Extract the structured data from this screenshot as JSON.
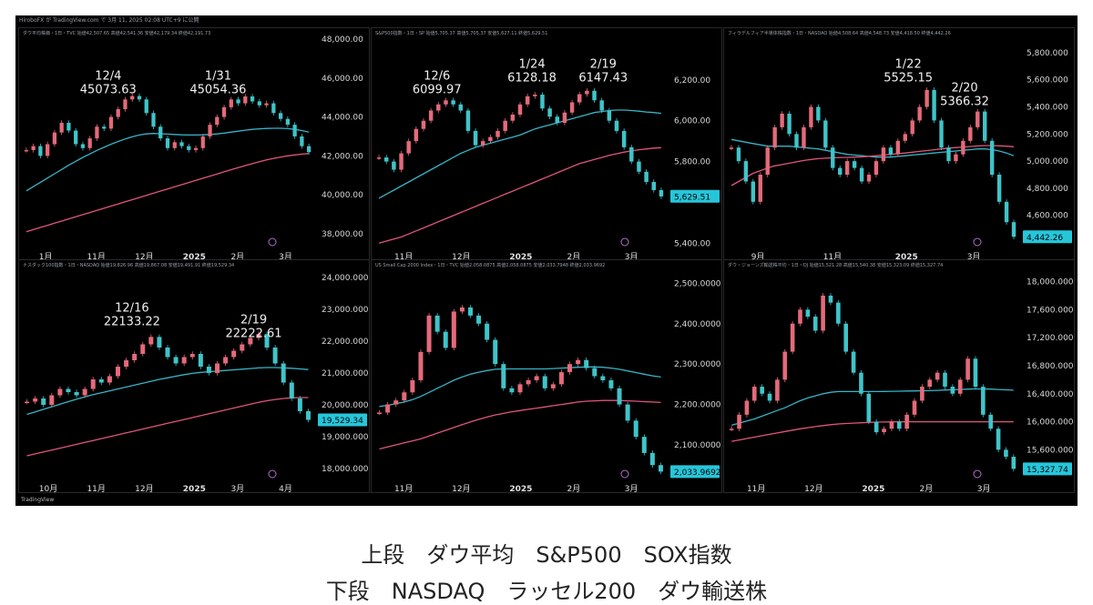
{
  "header": {
    "text": "HiroboFX が TradingView.com で 3月 11, 2025 02:08 UTC+9 に公開"
  },
  "watermark": "TradingView",
  "caption": {
    "line1": "上段　ダウ平均　S&P500　SOX指数",
    "line2": "下段　NASDAQ　ラッセル200　ダウ輸送株"
  },
  "colors": {
    "up": "#e46a7a",
    "down": "#3fc4c9",
    "ma_fast": "#36b5c7",
    "ma_slow": "#e0567c",
    "price_tag": "#26c6da"
  },
  "chart_data": [
    {
      "type": "line",
      "title": "ダウ平均株価・1日・TVC  始値42,507.65 高値42,541.36 安値42,179.34 終値42,191.73",
      "x_ticks": [
        "1月",
        "11月",
        "12月",
        "2025",
        "2月",
        "3月"
      ],
      "y_ticks": [
        "48,000.00",
        "46,000.00",
        "44,000.00",
        "42,000.00",
        "40,000.00",
        "38,000.00"
      ],
      "ylim": [
        37200,
        48000
      ],
      "last_price": "42,191.73",
      "annotations": [
        {
          "date": "12/4",
          "value": "45073.63"
        },
        {
          "date": "1/31",
          "value": "45054.36"
        }
      ],
      "series": [
        {
          "kind": "price",
          "values": [
            42300,
            42500,
            42000,
            42600,
            43200,
            43700,
            43300,
            42600,
            42400,
            42900,
            43500,
            43400,
            44000,
            44400,
            44900,
            45074,
            44900,
            44200,
            43500,
            42900,
            42400,
            42700,
            42500,
            42300,
            42400,
            43000,
            43600,
            44000,
            44500,
            44900,
            44700,
            45054,
            44800,
            44600,
            44700,
            44200,
            43900,
            43600,
            43000,
            42500,
            42191
          ]
        },
        {
          "kind": "ma_fast",
          "values": [
            40200,
            40420,
            40640,
            40860,
            41080,
            41300,
            41520,
            41720,
            41920,
            42100,
            42280,
            42440,
            42600,
            42740,
            42870,
            42980,
            43070,
            43130,
            43150,
            43140,
            43120,
            43100,
            43080,
            43070,
            43070,
            43080,
            43100,
            43130,
            43170,
            43220,
            43270,
            43320,
            43360,
            43390,
            43410,
            43420,
            43420,
            43400,
            43360,
            43300,
            43220
          ]
        },
        {
          "kind": "ma_slow",
          "values": [
            38100,
            38210,
            38320,
            38430,
            38540,
            38650,
            38760,
            38870,
            38980,
            39090,
            39200,
            39310,
            39420,
            39530,
            39640,
            39750,
            39860,
            39970,
            40080,
            40190,
            40300,
            40410,
            40520,
            40630,
            40740,
            40850,
            40960,
            41070,
            41180,
            41290,
            41400,
            41500,
            41600,
            41700,
            41790,
            41870,
            41940,
            42000,
            42050,
            42090,
            42120
          ]
        }
      ]
    },
    {
      "type": "line",
      "title": "S&P500指数・1日・SP  始値5,705.37 高値5,705.37 安値5,627.11 終値5,629.51",
      "x_ticks": [
        "11月",
        "12月",
        "2025",
        "2月",
        "3月"
      ],
      "y_ticks": [
        "6,200.00",
        "6,000.00",
        "5,800.00",
        "5,629.51",
        "5,400.00"
      ],
      "ylim": [
        5370,
        6400
      ],
      "last_price": "5,629.51",
      "annotations": [
        {
          "date": "12/6",
          "value": "6099.97"
        },
        {
          "date": "1/24",
          "value": "6128.18"
        },
        {
          "date": "2/19",
          "value": "6147.43"
        }
      ],
      "series": [
        {
          "kind": "price",
          "values": [
            5820,
            5800,
            5760,
            5840,
            5900,
            5960,
            6000,
            6050,
            6080,
            6100,
            6080,
            6050,
            5950,
            5880,
            5900,
            5920,
            5950,
            6000,
            6030,
            6080,
            6120,
            6128,
            6060,
            6020,
            5990,
            6040,
            6090,
            6130,
            6147,
            6100,
            6050,
            6000,
            5950,
            5870,
            5800,
            5750,
            5700,
            5660,
            5629
          ]
        },
        {
          "kind": "ma_fast",
          "values": [
            5620,
            5640,
            5660,
            5680,
            5700,
            5720,
            5740,
            5760,
            5780,
            5800,
            5820,
            5840,
            5855,
            5870,
            5880,
            5890,
            5900,
            5910,
            5920,
            5930,
            5945,
            5960,
            5970,
            5980,
            5990,
            6000,
            6010,
            6020,
            6030,
            6040,
            6045,
            6050,
            6052,
            6052,
            6050,
            6047,
            6043,
            6040,
            6036
          ]
        },
        {
          "kind": "ma_slow",
          "values": [
            5400,
            5410,
            5420,
            5430,
            5445,
            5460,
            5475,
            5490,
            5505,
            5520,
            5535,
            5550,
            5565,
            5580,
            5595,
            5610,
            5625,
            5640,
            5655,
            5670,
            5685,
            5700,
            5715,
            5730,
            5745,
            5760,
            5775,
            5790,
            5800,
            5810,
            5820,
            5830,
            5838,
            5846,
            5852,
            5858,
            5862,
            5866,
            5868
          ]
        }
      ]
    },
    {
      "type": "line",
      "title": "フィラデルフィア半導体株指数・1日・NASDAQ  始値4,508.64 高値4,548.73 安値4,418.50 終値4,442.26",
      "x_ticks": [
        "9月",
        "11月",
        "2025",
        "3月"
      ],
      "y_ticks": [
        "5,800.000",
        "5,600.000",
        "5,400.000",
        "5,200.000",
        "5,000.000",
        "4,800.000",
        "4,600.000",
        "4,442.26"
      ],
      "ylim": [
        4350,
        5900
      ],
      "last_price": "4,442.26",
      "annotations": [
        {
          "date": "1/22",
          "value": "5525.15"
        },
        {
          "date": "2/20",
          "value": "5366.32"
        }
      ],
      "series": [
        {
          "kind": "price",
          "values": [
            5100,
            5000,
            4850,
            4700,
            4900,
            5100,
            5250,
            5350,
            5200,
            5100,
            5250,
            5400,
            5300,
            5100,
            4950,
            4900,
            5000,
            4950,
            4850,
            4900,
            5000,
            5100,
            5050,
            5150,
            5200,
            5300,
            5400,
            5525,
            5300,
            5100,
            5000,
            5050,
            5150,
            5250,
            5366,
            5150,
            4900,
            4700,
            4550,
            4442
          ]
        },
        {
          "kind": "ma_fast",
          "values": [
            5160,
            5150,
            5140,
            5130,
            5120,
            5110,
            5110,
            5110,
            5110,
            5105,
            5100,
            5095,
            5090,
            5080,
            5070,
            5060,
            5050,
            5045,
            5040,
            5035,
            5030,
            5030,
            5030,
            5035,
            5040,
            5045,
            5050,
            5055,
            5060,
            5065,
            5070,
            5075,
            5080,
            5085,
            5090,
            5090,
            5085,
            5075,
            5060,
            5040
          ]
        },
        {
          "kind": "ma_slow",
          "values": [
            4820,
            4850,
            4880,
            4910,
            4930,
            4950,
            4965,
            4975,
            4985,
            4995,
            5005,
            5012,
            5018,
            5022,
            5025,
            5027,
            5028,
            5030,
            5032,
            5035,
            5040,
            5045,
            5050,
            5055,
            5060,
            5066,
            5072,
            5078,
            5084,
            5090,
            5096,
            5100,
            5104,
            5108,
            5112,
            5115,
            5115,
            5113,
            5110,
            5106
          ]
        }
      ]
    },
    {
      "type": "line",
      "title": "ナスダック100指数・1日・NASDAQ  始値19,826.96 高値19,867.08 安値19,491.91 終値19,529.34",
      "x_ticks": [
        "10月",
        "11月",
        "12月",
        "2025",
        "3月",
        "4月"
      ],
      "y_ticks": [
        "24,000.000",
        "23,000.000",
        "22,000.000",
        "21,000.000",
        "20,000.000",
        "19,529.34",
        "19,000.000",
        "18,000.000"
      ],
      "ylim": [
        17600,
        24200
      ],
      "last_price": "19,529.34",
      "annotations": [
        {
          "date": "12/16",
          "value": "22133.22"
        },
        {
          "date": "2/19",
          "value": "22222.61"
        }
      ],
      "series": [
        {
          "kind": "price",
          "values": [
            20100,
            20200,
            20000,
            20300,
            20500,
            20400,
            20300,
            20500,
            20800,
            20700,
            20900,
            21200,
            21400,
            21600,
            21900,
            22133,
            21800,
            21500,
            21300,
            21500,
            21600,
            21200,
            21000,
            21300,
            21500,
            21700,
            21900,
            22100,
            22222,
            21800,
            21300,
            20700,
            20200,
            19800,
            19529
          ]
        },
        {
          "kind": "ma_fast",
          "values": [
            19700,
            19780,
            19860,
            19940,
            20020,
            20100,
            20180,
            20250,
            20320,
            20380,
            20440,
            20500,
            20560,
            20620,
            20680,
            20740,
            20800,
            20850,
            20900,
            20950,
            20990,
            21020,
            21040,
            21060,
            21080,
            21100,
            21120,
            21140,
            21160,
            21170,
            21170,
            21160,
            21150,
            21130,
            21110
          ]
        },
        {
          "kind": "ma_slow",
          "values": [
            18400,
            18460,
            18520,
            18580,
            18640,
            18700,
            18760,
            18820,
            18880,
            18940,
            19000,
            19060,
            19120,
            19180,
            19240,
            19300,
            19360,
            19420,
            19480,
            19540,
            19600,
            19660,
            19720,
            19780,
            19840,
            19900,
            19960,
            20020,
            20080,
            20130,
            20170,
            20200,
            20220,
            20230,
            20230
          ]
        }
      ]
    },
    {
      "type": "line",
      "title": "US Small Cap 2000 Index・1日・TVC  始値2,058.0875 高値2,058.0875 安値2,033.7948 終値2,033.9692",
      "x_ticks": [
        "11月",
        "12月",
        "2025",
        "2月",
        "3月"
      ],
      "y_ticks": [
        "2,500.0000",
        "2,400.0000",
        "2,300.0000",
        "2,200.0000",
        "2,100.0000",
        "2,033.9692"
      ],
      "ylim": [
        2010,
        2530
      ],
      "last_price": "2,033.9692",
      "annotations": [],
      "series": [
        {
          "kind": "price",
          "values": [
            2180,
            2200,
            2210,
            2230,
            2260,
            2330,
            2420,
            2380,
            2340,
            2430,
            2440,
            2420,
            2400,
            2360,
            2300,
            2240,
            2230,
            2250,
            2260,
            2270,
            2240,
            2250,
            2280,
            2300,
            2310,
            2290,
            2270,
            2260,
            2240,
            2200,
            2160,
            2120,
            2080,
            2050,
            2034
          ]
        },
        {
          "kind": "ma_fast",
          "values": [
            2195,
            2198,
            2202,
            2206,
            2212,
            2220,
            2230,
            2240,
            2250,
            2260,
            2268,
            2275,
            2280,
            2284,
            2287,
            2288,
            2288,
            2288,
            2288,
            2288,
            2288,
            2289,
            2290,
            2291,
            2292,
            2293,
            2293,
            2292,
            2290,
            2287,
            2283,
            2279,
            2275,
            2271,
            2268
          ]
        },
        {
          "kind": "ma_slow",
          "values": [
            2090,
            2095,
            2100,
            2105,
            2110,
            2115,
            2122,
            2129,
            2136,
            2143,
            2150,
            2157,
            2163,
            2169,
            2174,
            2178,
            2182,
            2185,
            2188,
            2191,
            2194,
            2197,
            2200,
            2203,
            2206,
            2208,
            2209,
            2210,
            2210,
            2210,
            2209,
            2208,
            2207,
            2206,
            2205
          ]
        }
      ]
    },
    {
      "type": "line",
      "title": "ダウ・ジョーンズ輸送株平均・1日・DJ  始値15,521.28 高値15,540.38 安値15,323.09 終値15,327.74",
      "x_ticks": [
        "11月",
        "12月",
        "2025",
        "2月",
        "3月"
      ],
      "y_ticks": [
        "18,000.000",
        "17,600.000",
        "17,200.000",
        "16,800.000",
        "16,400.000",
        "16,000.000",
        "15,600.000",
        "15,327.74"
      ],
      "ylim": [
        15150,
        18150
      ],
      "last_price": "15,327.74",
      "annotations": [],
      "series": [
        {
          "kind": "price",
          "values": [
            15900,
            16100,
            16300,
            16500,
            16400,
            16300,
            16600,
            17000,
            17400,
            17600,
            17500,
            17300,
            17800,
            17700,
            17400,
            17000,
            16700,
            16400,
            16000,
            15850,
            15900,
            16000,
            15900,
            16100,
            16300,
            16500,
            16600,
            16700,
            16500,
            16400,
            16600,
            16900,
            16500,
            16100,
            15900,
            15600,
            15500,
            15327
          ]
        },
        {
          "kind": "ma_fast",
          "values": [
            15950,
            15980,
            16010,
            16040,
            16080,
            16120,
            16160,
            16200,
            16250,
            16300,
            16340,
            16370,
            16400,
            16420,
            16430,
            16430,
            16430,
            16430,
            16430,
            16430,
            16432,
            16434,
            16436,
            16438,
            16440,
            16442,
            16444,
            16448,
            16452,
            16456,
            16460,
            16465,
            16468,
            16468,
            16465,
            16460,
            16455,
            16450
          ]
        },
        {
          "kind": "ma_slow",
          "values": [
            15720,
            15740,
            15760,
            15780,
            15800,
            15820,
            15840,
            15860,
            15880,
            15900,
            15915,
            15930,
            15945,
            15958,
            15968,
            15975,
            15980,
            15985,
            15990,
            15994,
            15996,
            15998,
            16000,
            16000,
            16000,
            16000,
            16000,
            16000,
            16000,
            16000,
            16000,
            16000,
            16000,
            16000,
            16000,
            16000,
            16000,
            16000
          ]
        }
      ]
    }
  ]
}
